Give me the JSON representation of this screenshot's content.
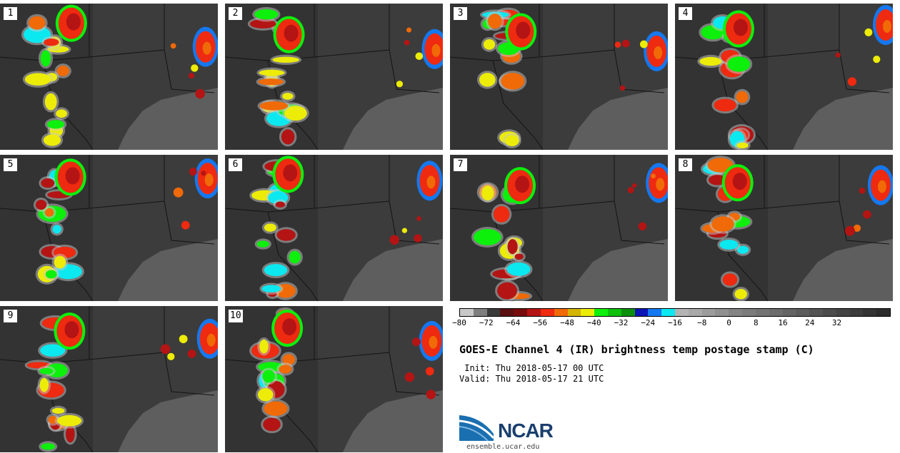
{
  "panels": [
    {
      "label": "1"
    },
    {
      "label": "2"
    },
    {
      "label": "3"
    },
    {
      "label": "4"
    },
    {
      "label": "5"
    },
    {
      "label": "6"
    },
    {
      "label": "7"
    },
    {
      "label": "8"
    },
    {
      "label": "9"
    },
    {
      "label": "10"
    }
  ],
  "colorbar": {
    "colors": [
      "#c8c8c8",
      "#7e7e7e",
      "#3a3a3a",
      "#5a1010",
      "#780c0c",
      "#b41414",
      "#ee2a10",
      "#f06a08",
      "#d4b404",
      "#ecec08",
      "#0cf00c",
      "#0cc00c",
      "#0c900c",
      "#0c14b4",
      "#1478f0",
      "#0ce8f0",
      "#b4b4b4",
      "#a8a8a8",
      "#9c9c9c",
      "#909090",
      "#848484",
      "#7c7c7c",
      "#747474",
      "#6c6c6c",
      "#646464",
      "#5c5c5c",
      "#545454",
      "#4c4c4c",
      "#444444",
      "#3c3c3c",
      "#343434",
      "#2c2c2c"
    ],
    "tick_labels": [
      "−80",
      "−72",
      "−64",
      "−56",
      "−48",
      "−40",
      "−32",
      "−24",
      "−16",
      "−8",
      "0",
      "8",
      "16",
      "24",
      "32"
    ]
  },
  "title": "GOES-E Channel 4 (IR) brightness temp postage stamp (C)",
  "init": " Init: Thu 2018-05-17 00 UTC",
  "valid": "Valid: Thu 2018-05-17 21 UTC",
  "logo_text": "NCAR",
  "site": "ensemble.ucar.edu"
}
